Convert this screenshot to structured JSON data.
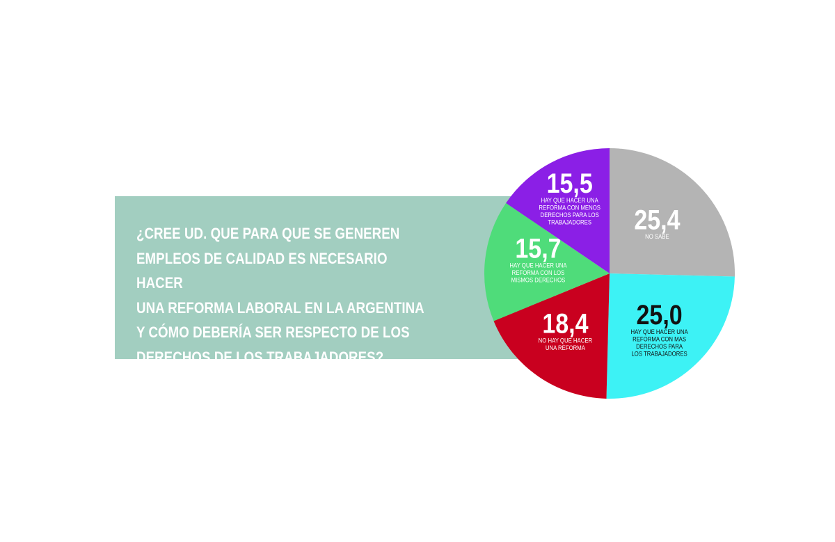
{
  "chart_data": {
    "type": "pie",
    "title": "¿CREE UD. QUE PARA QUE SE GENEREN\nEMPLEOS DE CALIDAD ES NECESARIO HACER\nUNA REFORMA LABORAL EN LA ARGENTINA\nY CÓMO DEBERÍA SER RESPECTO DE LOS\nDERECHOS DE LOS TRABAJADORES?",
    "slices": [
      {
        "value": 25.4,
        "value_label": "25,4",
        "label_lines": [
          "NO SABE"
        ],
        "color": "#b4b4b4",
        "text_color": "#ffffff"
      },
      {
        "value": 25.0,
        "value_label": "25,0",
        "label_lines": [
          "HAY QUE HACER UNA",
          "REFORMA CON MAS",
          "DERECHOS PARA",
          "LOS TRABAJADORES"
        ],
        "color": "#3df2f5",
        "text_color": "#111111"
      },
      {
        "value": 18.4,
        "value_label": "18,4",
        "label_lines": [
          "NO HAY QUE HACER",
          "UNA REFORMA"
        ],
        "color": "#c9001f",
        "text_color": "#ffffff"
      },
      {
        "value": 15.7,
        "value_label": "15,7",
        "label_lines": [
          "HAY QUE HACER UNA",
          "REFORMA CON LOS",
          "MISMOS DERECHOS"
        ],
        "color": "#4fdc7a",
        "text_color": "#ffffff"
      },
      {
        "value": 15.5,
        "value_label": "15,5",
        "label_lines": [
          "HAY QUE HACER UNA",
          "REFORMA CON MENOS",
          "DERECHOS PARA LOS",
          "TRABAJADORES"
        ],
        "color": "#8b1fe6",
        "text_color": "#ffffff"
      }
    ]
  }
}
